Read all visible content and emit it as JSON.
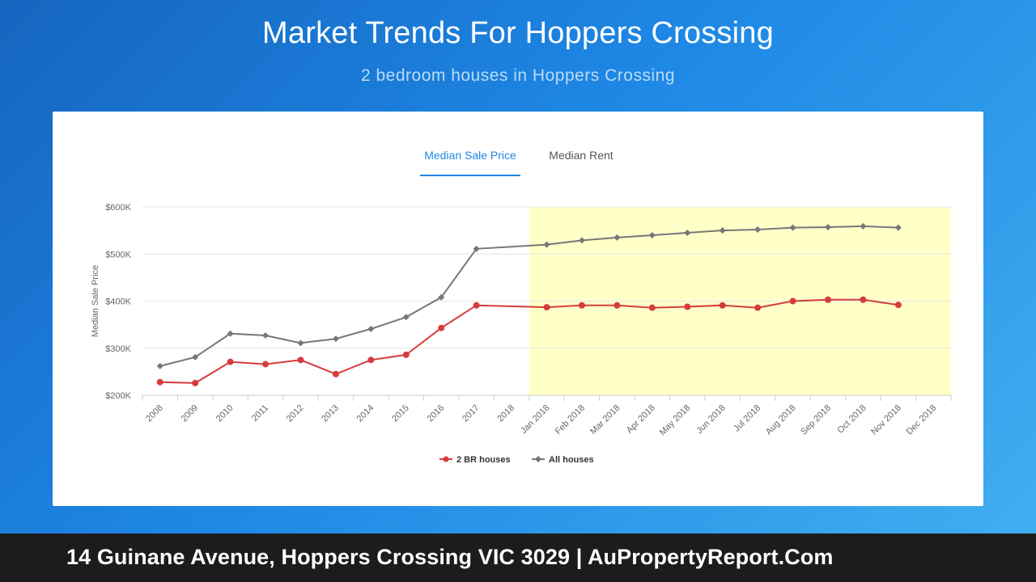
{
  "header": {
    "title": "Market Trends For Hoppers Crossing",
    "subtitle": "2 bedroom houses in Hoppers Crossing"
  },
  "tabs": [
    {
      "label": "Median Sale Price",
      "active": true
    },
    {
      "label": "Median Rent",
      "active": false
    }
  ],
  "chart_data": {
    "type": "line",
    "ylabel": "Median Sale Price",
    "y_ticks": [
      "$200K",
      "$300K",
      "$400K",
      "$500K",
      "$600K"
    ],
    "ylim": [
      200000,
      600000
    ],
    "categories": [
      "2008",
      "2009",
      "2010",
      "2011",
      "2012",
      "2013",
      "2014",
      "2015",
      "2016",
      "2017",
      "2018",
      "Jan 2018",
      "Feb 2018",
      "Mar 2018",
      "Apr 2018",
      "May 2018",
      "Jun 2018",
      "Jul 2018",
      "Aug 2018",
      "Sep 2018",
      "Oct 2018",
      "Nov 2018",
      "Dec 2018"
    ],
    "highlight_range": [
      "Jan 2018",
      "Dec 2018"
    ],
    "highlight_color": "#ffffc8",
    "grid": true,
    "legend_position": "bottom-center",
    "series": [
      {
        "name": "2 BR houses",
        "color": "#d63c3c",
        "marker": "circle",
        "values": [
          228000,
          226000,
          271000,
          266000,
          275000,
          245000,
          275000,
          286000,
          343000,
          391000,
          null,
          387000,
          391000,
          391000,
          386000,
          388000,
          391000,
          386000,
          400000,
          403000,
          403000,
          392000,
          null
        ]
      },
      {
        "name": "All houses",
        "color": "#777777",
        "marker": "diamond",
        "values": [
          262000,
          281000,
          331000,
          327000,
          311000,
          320000,
          341000,
          366000,
          408000,
          511000,
          null,
          520000,
          529000,
          535000,
          540000,
          545000,
          550000,
          552000,
          556000,
          557000,
          559000,
          556000,
          null
        ]
      }
    ]
  },
  "footer": {
    "text": "14 Guinane Avenue, Hoppers Crossing VIC 3029 | AuPropertyReport.Com"
  }
}
